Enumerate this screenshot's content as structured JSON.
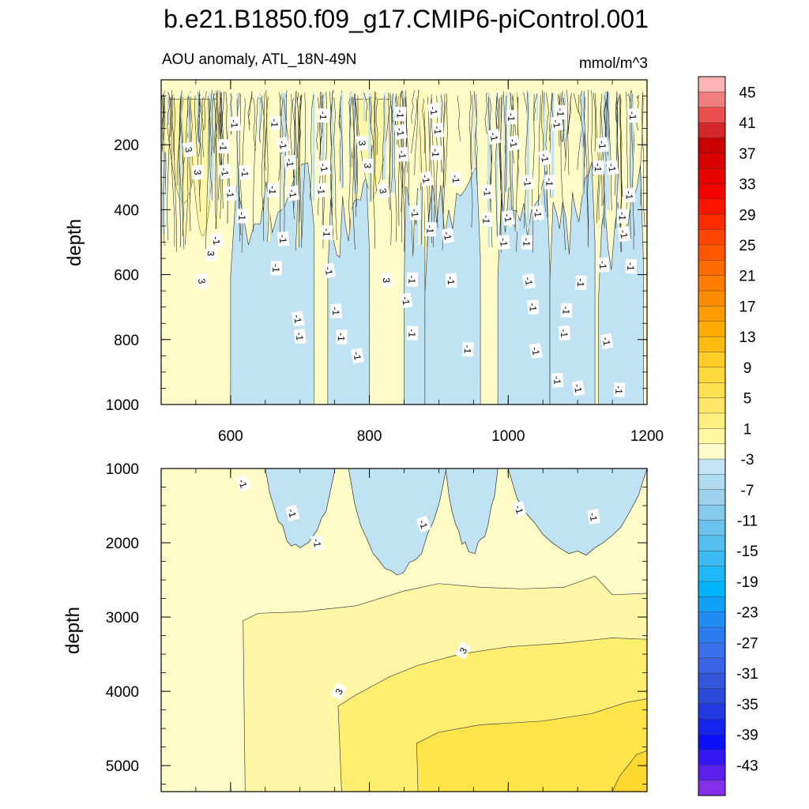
{
  "chart_data": {
    "type": "heatmap",
    "title": "b.e21.B1850.f09_g17.CMIP6-piControl.001",
    "subtitle_left": "AOU anomaly, ATL_18N-49N",
    "subtitle_right": "mmol/m^3",
    "xlim": [
      500,
      1200
    ],
    "x_ticks": [
      600,
      800,
      1000,
      1200
    ],
    "panels": [
      {
        "name": "upper",
        "ylabel": "depth",
        "ylim": [
          0,
          1000
        ],
        "y_ticks": [
          200,
          400,
          600,
          800,
          1000
        ],
        "contour_labels": [
          {
            "x": 540,
            "y": 215,
            "text": "3"
          },
          {
            "x": 553,
            "y": 285,
            "text": "3"
          },
          {
            "x": 572,
            "y": 535,
            "text": "3"
          },
          {
            "x": 559,
            "y": 620,
            "text": "3"
          },
          {
            "x": 606,
            "y": 135,
            "text": "-1"
          },
          {
            "x": 590,
            "y": 205,
            "text": "-1"
          },
          {
            "x": 592,
            "y": 283,
            "text": "-1"
          },
          {
            "x": 600,
            "y": 350,
            "text": "-1"
          },
          {
            "x": 617,
            "y": 420,
            "text": "-1"
          },
          {
            "x": 580,
            "y": 495,
            "text": "-1"
          },
          {
            "x": 621,
            "y": 285,
            "text": "-1"
          },
          {
            "x": 664,
            "y": 133,
            "text": "-1"
          },
          {
            "x": 676,
            "y": 200,
            "text": "-1"
          },
          {
            "x": 686,
            "y": 255,
            "text": "-1"
          },
          {
            "x": 661,
            "y": 340,
            "text": "-1"
          },
          {
            "x": 690,
            "y": 350,
            "text": "-1"
          },
          {
            "x": 676,
            "y": 490,
            "text": "-1"
          },
          {
            "x": 666,
            "y": 580,
            "text": "-1"
          },
          {
            "x": 697,
            "y": 736,
            "text": "-1"
          },
          {
            "x": 700,
            "y": 790,
            "text": "-1"
          },
          {
            "x": 734,
            "y": 110,
            "text": "-1"
          },
          {
            "x": 735,
            "y": 270,
            "text": "-1"
          },
          {
            "x": 731,
            "y": 340,
            "text": "-1"
          },
          {
            "x": 739,
            "y": 470,
            "text": "-1"
          },
          {
            "x": 742,
            "y": 588,
            "text": "-1"
          },
          {
            "x": 752,
            "y": 712,
            "text": "-1"
          },
          {
            "x": 760,
            "y": 792,
            "text": "-1"
          },
          {
            "x": 783,
            "y": 850,
            "text": "-1"
          },
          {
            "x": 790,
            "y": 195,
            "text": "3"
          },
          {
            "x": 798,
            "y": 265,
            "text": "3"
          },
          {
            "x": 820,
            "y": 342,
            "text": "3"
          },
          {
            "x": 825,
            "y": 617,
            "text": "3"
          },
          {
            "x": 845,
            "y": 105,
            "text": "-1"
          },
          {
            "x": 845,
            "y": 160,
            "text": "-1"
          },
          {
            "x": 848,
            "y": 230,
            "text": "-1"
          },
          {
            "x": 862,
            "y": 615,
            "text": "-1"
          },
          {
            "x": 853,
            "y": 680,
            "text": "-1"
          },
          {
            "x": 866,
            "y": 410,
            "text": "-1"
          },
          {
            "x": 862,
            "y": 780,
            "text": "-1"
          },
          {
            "x": 893,
            "y": 95,
            "text": "-1"
          },
          {
            "x": 899,
            "y": 155,
            "text": "-1"
          },
          {
            "x": 896,
            "y": 225,
            "text": "-1"
          },
          {
            "x": 882,
            "y": 305,
            "text": "-1"
          },
          {
            "x": 925,
            "y": 305,
            "text": "-1"
          },
          {
            "x": 888,
            "y": 460,
            "text": "-1"
          },
          {
            "x": 913,
            "y": 480,
            "text": "-1"
          },
          {
            "x": 918,
            "y": 618,
            "text": "-1"
          },
          {
            "x": 942,
            "y": 830,
            "text": "-1"
          },
          {
            "x": 980,
            "y": 175,
            "text": "-1"
          },
          {
            "x": 970,
            "y": 345,
            "text": "-1"
          },
          {
            "x": 969,
            "y": 430,
            "text": "-1"
          },
          {
            "x": 1000,
            "y": 425,
            "text": "-1"
          },
          {
            "x": 994,
            "y": 500,
            "text": "-1"
          },
          {
            "x": 1005,
            "y": 115,
            "text": "-1"
          },
          {
            "x": 1008,
            "y": 195,
            "text": "-1"
          },
          {
            "x": 1028,
            "y": 315,
            "text": "-1"
          },
          {
            "x": 1060,
            "y": 315,
            "text": "-1"
          },
          {
            "x": 1053,
            "y": 240,
            "text": "-1"
          },
          {
            "x": 1043,
            "y": 410,
            "text": "-1"
          },
          {
            "x": 1027,
            "y": 500,
            "text": "-1"
          },
          {
            "x": 1030,
            "y": 620,
            "text": "-1"
          },
          {
            "x": 1036,
            "y": 700,
            "text": "-1"
          },
          {
            "x": 1076,
            "y": 100,
            "text": "-1"
          },
          {
            "x": 1070,
            "y": 135,
            "text": "-1"
          },
          {
            "x": 1081,
            "y": 780,
            "text": "-1"
          },
          {
            "x": 1084,
            "y": 710,
            "text": "-1"
          },
          {
            "x": 1040,
            "y": 835,
            "text": "-1"
          },
          {
            "x": 1071,
            "y": 925,
            "text": "-1"
          },
          {
            "x": 1105,
            "y": 625,
            "text": "-1"
          },
          {
            "x": 1101,
            "y": 950,
            "text": "-1"
          },
          {
            "x": 1136,
            "y": 200,
            "text": "-1"
          },
          {
            "x": 1130,
            "y": 270,
            "text": "-1"
          },
          {
            "x": 1150,
            "y": 270,
            "text": "-1"
          },
          {
            "x": 1175,
            "y": 355,
            "text": "-1"
          },
          {
            "x": 1165,
            "y": 420,
            "text": "-1"
          },
          {
            "x": 1167,
            "y": 475,
            "text": "-1"
          },
          {
            "x": 1137,
            "y": 570,
            "text": "-1"
          },
          {
            "x": 1177,
            "y": 575,
            "text": "-1"
          },
          {
            "x": 1142,
            "y": 805,
            "text": "-1"
          },
          {
            "x": 1180,
            "y": 110,
            "text": "-1"
          },
          {
            "x": 1160,
            "y": 955,
            "text": "-1"
          }
        ]
      },
      {
        "name": "lower",
        "ylabel": "depth",
        "ylim": [
          1000,
          5350
        ],
        "y_ticks": [
          1000,
          2000,
          3000,
          4000,
          5000
        ],
        "contour_labels": [
          {
            "x": 618,
            "y": 1200,
            "text": "-1"
          },
          {
            "x": 689,
            "y": 1600,
            "text": "-1"
          },
          {
            "x": 725,
            "y": 2000,
            "text": "-1"
          },
          {
            "x": 878,
            "y": 1750,
            "text": "-1"
          },
          {
            "x": 1016,
            "y": 1550,
            "text": "-1"
          },
          {
            "x": 1123,
            "y": 1650,
            "text": "-1"
          },
          {
            "x": 935,
            "y": 3450,
            "text": "3"
          },
          {
            "x": 756,
            "y": 4000,
            "text": "3"
          }
        ]
      }
    ],
    "colorbar": {
      "labels": [
        "45",
        "41",
        "37",
        "33",
        "29",
        "25",
        "21",
        "17",
        "13",
        "9",
        "5",
        "1",
        "-3",
        "-7",
        "-11",
        "-15",
        "-19",
        "-23",
        "-27",
        "-31",
        "-35",
        "-39",
        "-43"
      ],
      "colors": [
        "#fbb4b4",
        "#f08080",
        "#e8504e",
        "#d42828",
        "#c80000",
        "#d80000",
        "#e60000",
        "#f40000",
        "#ff1400",
        "#ff2c00",
        "#ff4400",
        "#ff5800",
        "#ff6a00",
        "#ff7c00",
        "#ff8c00",
        "#ff9c00",
        "#ffac00",
        "#ffbc10",
        "#ffcc28",
        "#ffd83c",
        "#ffe050",
        "#ffe868",
        "#fff080",
        "#fff6a0",
        "#fffccc",
        "#c4e4f4",
        "#b0daf0",
        "#9cd2ee",
        "#84caec",
        "#6cc2ec",
        "#54beee",
        "#3cbaf2",
        "#1eb8f8",
        "#00b4fc",
        "#10a0f8",
        "#208cf4",
        "#2c7cf0",
        "#3870ec",
        "#3a62e4",
        "#3458dc",
        "#2c4ad8",
        "#2238e0",
        "#1424ec",
        "#0a10f8",
        "#3418f4",
        "#5c20ec",
        "#8430e8"
      ]
    },
    "fill_colors": {
      "pos1": "#fffcc8",
      "pos3": "#fff7a6",
      "pos5": "#ffee70",
      "pos7": "#ffe44a",
      "pos9": "#ffd830",
      "neg1": "#bfe3f3"
    }
  }
}
